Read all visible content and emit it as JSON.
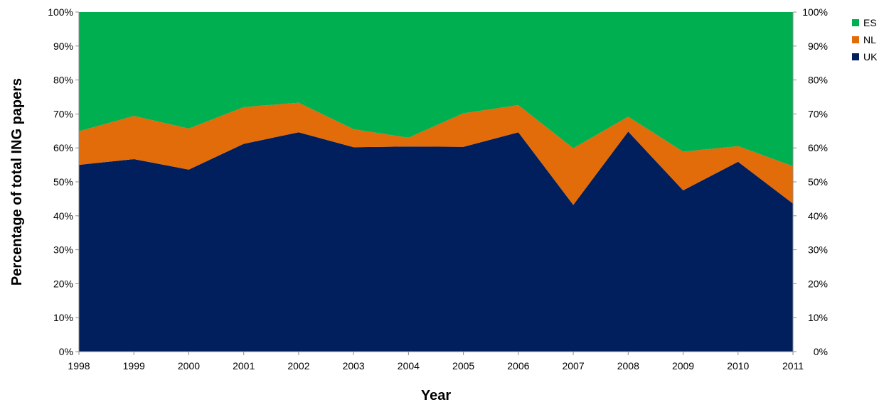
{
  "chart_data": {
    "type": "area",
    "stacked": true,
    "percent": true,
    "title": "",
    "xlabel": "Year",
    "ylabel": "Percentage of total ING papers",
    "categories": [
      "1998",
      "1999",
      "2000",
      "2001",
      "2002",
      "2003",
      "2004",
      "2005",
      "2006",
      "2007",
      "2008",
      "2009",
      "2010",
      "2011"
    ],
    "ylim": [
      0,
      100
    ],
    "yticks": [
      "0%",
      "10%",
      "20%",
      "30%",
      "40%",
      "50%",
      "60%",
      "70%",
      "80%",
      "90%",
      "100%"
    ],
    "secondary_yticks": [
      "0%",
      "10%",
      "20%",
      "30%",
      "40%",
      "50%",
      "60%",
      "70%",
      "80%",
      "90%",
      "100%"
    ],
    "series": [
      {
        "name": "UK",
        "color": "#001f5c",
        "values": [
          55.0,
          56.7,
          53.6,
          61.2,
          64.6,
          60.2,
          60.4,
          60.3,
          64.6,
          43.2,
          64.8,
          47.5,
          55.9,
          43.6
        ]
      },
      {
        "name": "NL",
        "color": "#e26b0a",
        "values": [
          9.9,
          12.7,
          12.1,
          10.8,
          8.7,
          5.3,
          2.6,
          9.9,
          8.0,
          16.7,
          4.4,
          11.4,
          4.6,
          11.0
        ]
      },
      {
        "name": "ES",
        "color": "#00b050",
        "values": [
          35.1,
          30.6,
          34.3,
          28.0,
          26.7,
          34.5,
          37.0,
          29.8,
          27.4,
          40.1,
          30.8,
          41.1,
          39.5,
          45.4
        ]
      }
    ],
    "legend_order": [
      "ES",
      "NL",
      "UK"
    ],
    "legend_position": "right",
    "grid": false
  }
}
